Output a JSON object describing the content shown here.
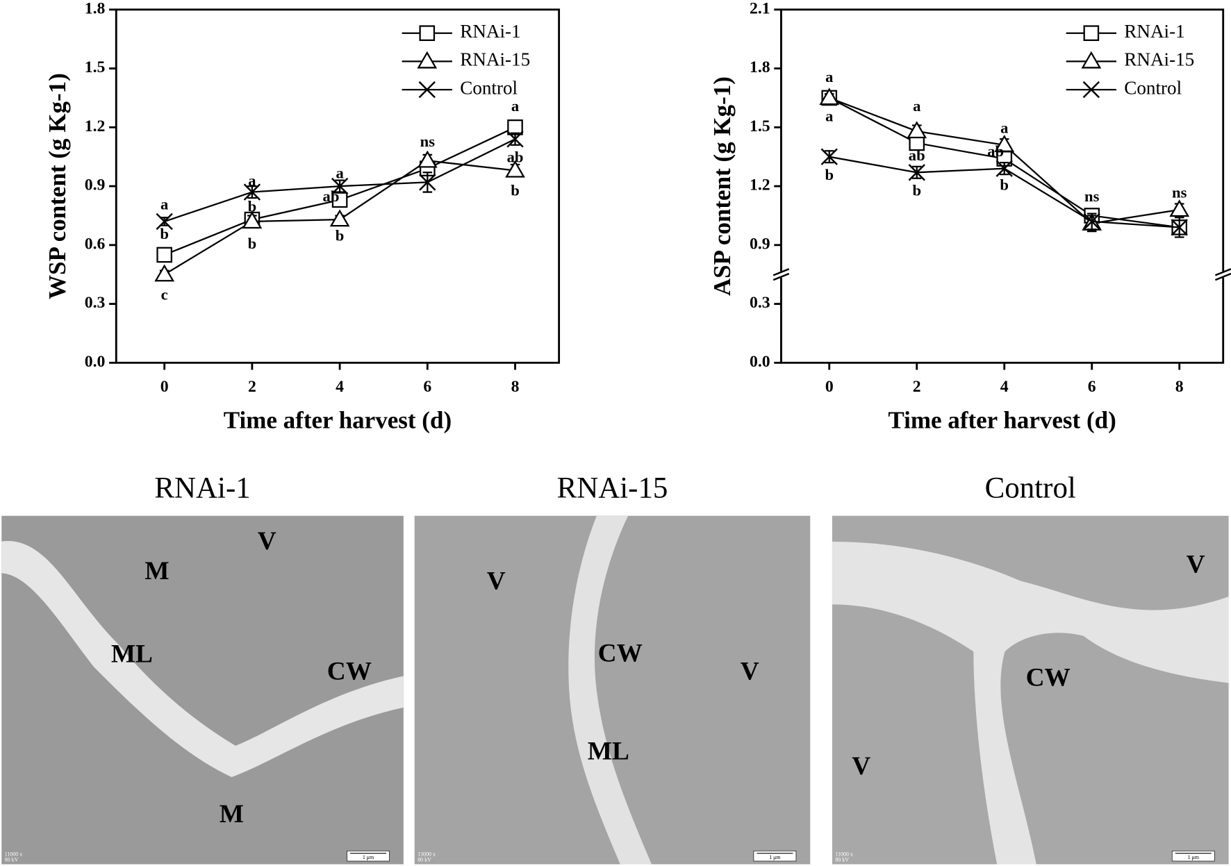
{
  "chart_data": [
    {
      "type": "line",
      "ylabel": "WSP content (g Kg-1)",
      "xlabel": "Time after harvest (d)",
      "x": [
        0,
        2,
        4,
        6,
        8
      ],
      "xlim": [
        -1.1,
        9
      ],
      "xticks": [
        0,
        2,
        4,
        6,
        8
      ],
      "ylim": [
        0,
        1.8
      ],
      "yticks": [
        {
          "value": 0,
          "label": "0.0"
        },
        0.3,
        0.6,
        0.9,
        1.2,
        1.5,
        1.8
      ],
      "legend": "upper right",
      "grid": false,
      "series": [
        {
          "name": "RNAi-1",
          "color": "#000000",
          "marker": "square",
          "values": [
            0.55,
            0.73,
            0.83,
            0.99,
            1.2
          ],
          "errors": [
            0.02,
            0.02,
            0.03,
            0.03,
            0.03
          ]
        },
        {
          "name": "RNAi-15",
          "color": "#000000",
          "marker": "triangle",
          "values": [
            0.45,
            0.72,
            0.73,
            1.03,
            0.98
          ],
          "errors": [
            0.02,
            0.03,
            0.02,
            0.03,
            0.03
          ]
        },
        {
          "name": "Control",
          "color": "#000000",
          "marker": "x",
          "values": [
            0.72,
            0.87,
            0.9,
            0.92,
            1.14
          ],
          "errors": [
            0.02,
            0.03,
            0.03,
            0.05,
            0.03
          ]
        }
      ],
      "annotations": [
        {
          "x": 0,
          "y": 0.8,
          "text": "a"
        },
        {
          "x": 0,
          "y": 0.65,
          "text": "b"
        },
        {
          "x": 0,
          "y": 0.34,
          "text": "c"
        },
        {
          "x": 2,
          "y": 0.92,
          "text": "a"
        },
        {
          "x": 2,
          "y": 0.79,
          "text": "b"
        },
        {
          "x": 2,
          "y": 0.6,
          "text": "b"
        },
        {
          "x": 4,
          "y": 0.96,
          "text": "a"
        },
        {
          "x": 3.8,
          "y": 0.84,
          "text": "ab"
        },
        {
          "x": 4,
          "y": 0.64,
          "text": "b"
        },
        {
          "x": 6,
          "y": 1.12,
          "text": "ns"
        },
        {
          "x": 8,
          "y": 1.3,
          "text": "a"
        },
        {
          "x": 8,
          "y": 1.04,
          "text": "ab"
        },
        {
          "x": 8,
          "y": 0.87,
          "text": "b"
        }
      ]
    },
    {
      "type": "line",
      "ylabel": "ASP content (g Kg-1)",
      "xlabel": "Time after harvest (d)",
      "x": [
        0,
        2,
        4,
        6,
        8
      ],
      "xlim": [
        -1.1,
        9
      ],
      "xticks": [
        0,
        2,
        4,
        6,
        8
      ],
      "ylim": [
        0,
        2.1
      ],
      "ybreak": [
        0.45,
        0.75
      ],
      "yticks": [
        {
          "value": 0,
          "label": "0.0"
        },
        0.3,
        0.9,
        1.2,
        1.5,
        1.8,
        2.1
      ],
      "legend": "upper right",
      "grid": false,
      "series": [
        {
          "name": "RNAi-1",
          "color": "#000000",
          "marker": "square",
          "values": [
            1.65,
            1.42,
            1.34,
            1.05,
            0.99
          ],
          "errors": [
            0.02,
            0.03,
            0.03,
            0.03,
            0.03
          ]
        },
        {
          "name": "RNAi-15",
          "color": "#000000",
          "marker": "triangle",
          "values": [
            1.65,
            1.48,
            1.41,
            1.01,
            1.08
          ],
          "errors": [
            0.02,
            0.03,
            0.03,
            0.04,
            0.03
          ]
        },
        {
          "name": "Control",
          "color": "#000000",
          "marker": "x",
          "values": [
            1.35,
            1.27,
            1.29,
            1.02,
            0.99
          ],
          "errors": [
            0.03,
            0.03,
            0.03,
            0.04,
            0.05
          ]
        }
      ],
      "annotations": [
        {
          "x": 0,
          "y": 1.75,
          "text": "a"
        },
        {
          "x": 0,
          "y": 1.55,
          "text": "a"
        },
        {
          "x": 0,
          "y": 1.25,
          "text": "b"
        },
        {
          "x": 2,
          "y": 1.6,
          "text": "a"
        },
        {
          "x": 2,
          "y": 1.35,
          "text": "ab"
        },
        {
          "x": 2,
          "y": 1.17,
          "text": "b"
        },
        {
          "x": 4,
          "y": 1.49,
          "text": "a"
        },
        {
          "x": 3.8,
          "y": 1.37,
          "text": "ab"
        },
        {
          "x": 4,
          "y": 1.2,
          "text": "b"
        },
        {
          "x": 6,
          "y": 1.14,
          "text": "ns"
        },
        {
          "x": 8,
          "y": 1.16,
          "text": "ns"
        }
      ]
    }
  ],
  "micrographs": [
    {
      "title": "RNAi-1",
      "labels": [
        "V",
        "M",
        "ML",
        "CW",
        "M"
      ],
      "magnification": "11000 x",
      "voltage": "80 kV",
      "scale_bar": "1 μm"
    },
    {
      "title": "RNAi-15",
      "labels": [
        "V",
        "CW",
        "V",
        "ML"
      ],
      "magnification": "13000 x",
      "voltage": "80 kV",
      "scale_bar": "1 μm"
    },
    {
      "title": "Control",
      "labels": [
        "V",
        "CW",
        "V"
      ],
      "magnification": "11000 x",
      "voltage": "80 kV",
      "scale_bar": "1 μm"
    }
  ]
}
